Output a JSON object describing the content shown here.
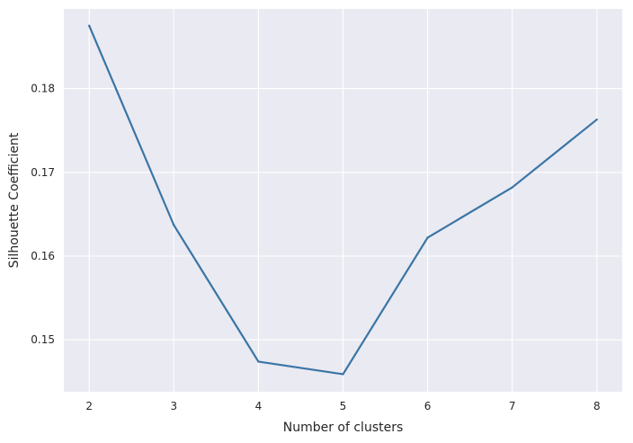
{
  "chart_data": {
    "type": "line",
    "title": "",
    "xlabel": "Number of clusters",
    "ylabel": "Silhouette Coefficient",
    "x": [
      2,
      3,
      4,
      5,
      6,
      7,
      8
    ],
    "series": [
      {
        "values": [
          0.1875,
          0.1637,
          0.1474,
          0.1459,
          0.1622,
          0.1682,
          0.1763
        ]
      }
    ],
    "xticks": [
      "2",
      "3",
      "4",
      "5",
      "6",
      "7",
      "8"
    ],
    "yticks": [
      "0.15",
      "0.16",
      "0.17",
      "0.18"
    ],
    "xlim": [
      1.7,
      8.3
    ],
    "ylim": [
      0.1438,
      0.1895
    ],
    "grid": true,
    "legend": "none",
    "colors": {
      "background": "#eaeaf2",
      "grid": "#ffffff",
      "line": "#3a75a6"
    }
  }
}
